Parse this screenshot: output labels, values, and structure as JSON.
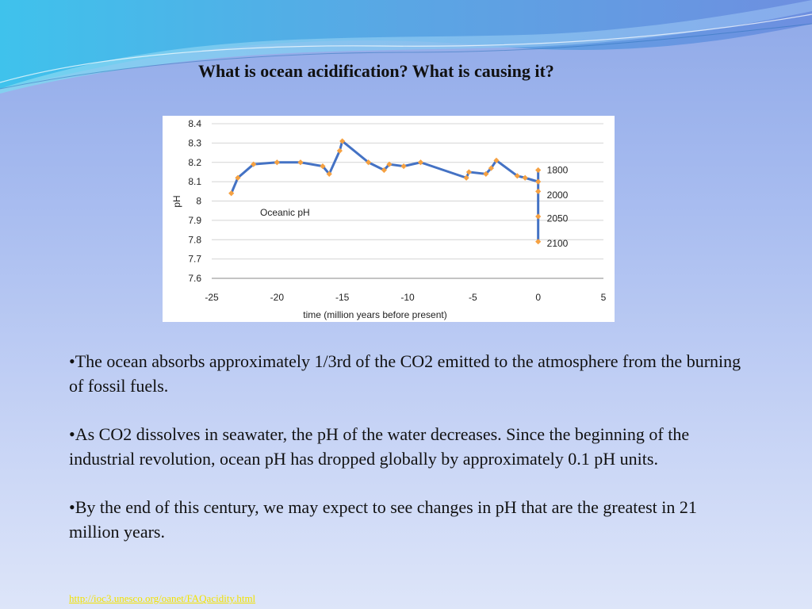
{
  "slide": {
    "title": "What is ocean acidification? What is causing it?",
    "bullets": [
      "•The ocean absorbs approximately 1/3rd of the CO2 emitted to the atmosphere from the burning of fossil fuels.",
      "•As CO2 dissolves in seawater, the pH of the water decreases. Since the beginning of the industrial revolution, ocean pH has dropped globally by approximately 0.1 pH units.",
      "•By the end of this century, we may expect to see changes in pH that are the greatest in 21 million years."
    ],
    "source_link": "http://ioc3.unesco.org/oanet/FAQacidity.html"
  },
  "colors": {
    "line": "#4472c4",
    "marker": "#f5a142",
    "link": "#f2e200"
  },
  "chart_data": {
    "type": "line",
    "xlabel": "time (million years before present)",
    "ylabel": "pH",
    "annotation": "Oceanic pH",
    "xlim": [
      -25,
      5
    ],
    "ylim": [
      7.6,
      8.4
    ],
    "xticks": [
      "-25",
      "-20",
      "-15",
      "-10",
      "-5",
      "0",
      "5"
    ],
    "yticks": [
      "8.4",
      "8.3",
      "8.2",
      "8.1",
      "8",
      "7.9",
      "7.8",
      "7.7",
      "7.6"
    ],
    "x": [
      -23.5,
      -23.0,
      -21.8,
      -20.0,
      -18.2,
      -16.5,
      -16.0,
      -15.2,
      -15.0,
      -13.0,
      -11.8,
      -11.4,
      -10.3,
      -9.0,
      -5.5,
      -5.3,
      -4.0,
      -3.6,
      -3.2,
      -1.6,
      -1.0,
      0.0,
      0.0,
      0.0,
      0.0,
      0.0
    ],
    "y": [
      8.04,
      8.12,
      8.19,
      8.2,
      8.2,
      8.18,
      8.14,
      8.26,
      8.31,
      8.2,
      8.16,
      8.19,
      8.18,
      8.2,
      8.12,
      8.15,
      8.14,
      8.17,
      8.21,
      8.13,
      8.12,
      8.1,
      8.16,
      8.05,
      7.92,
      7.79
    ],
    "labels": [
      {
        "text": "1800",
        "x": 0,
        "y": 8.16
      },
      {
        "text": "2000",
        "x": 0,
        "y": 8.03
      },
      {
        "text": "2050",
        "x": 0,
        "y": 7.91
      },
      {
        "text": "2100",
        "x": 0,
        "y": 7.78
      }
    ]
  }
}
